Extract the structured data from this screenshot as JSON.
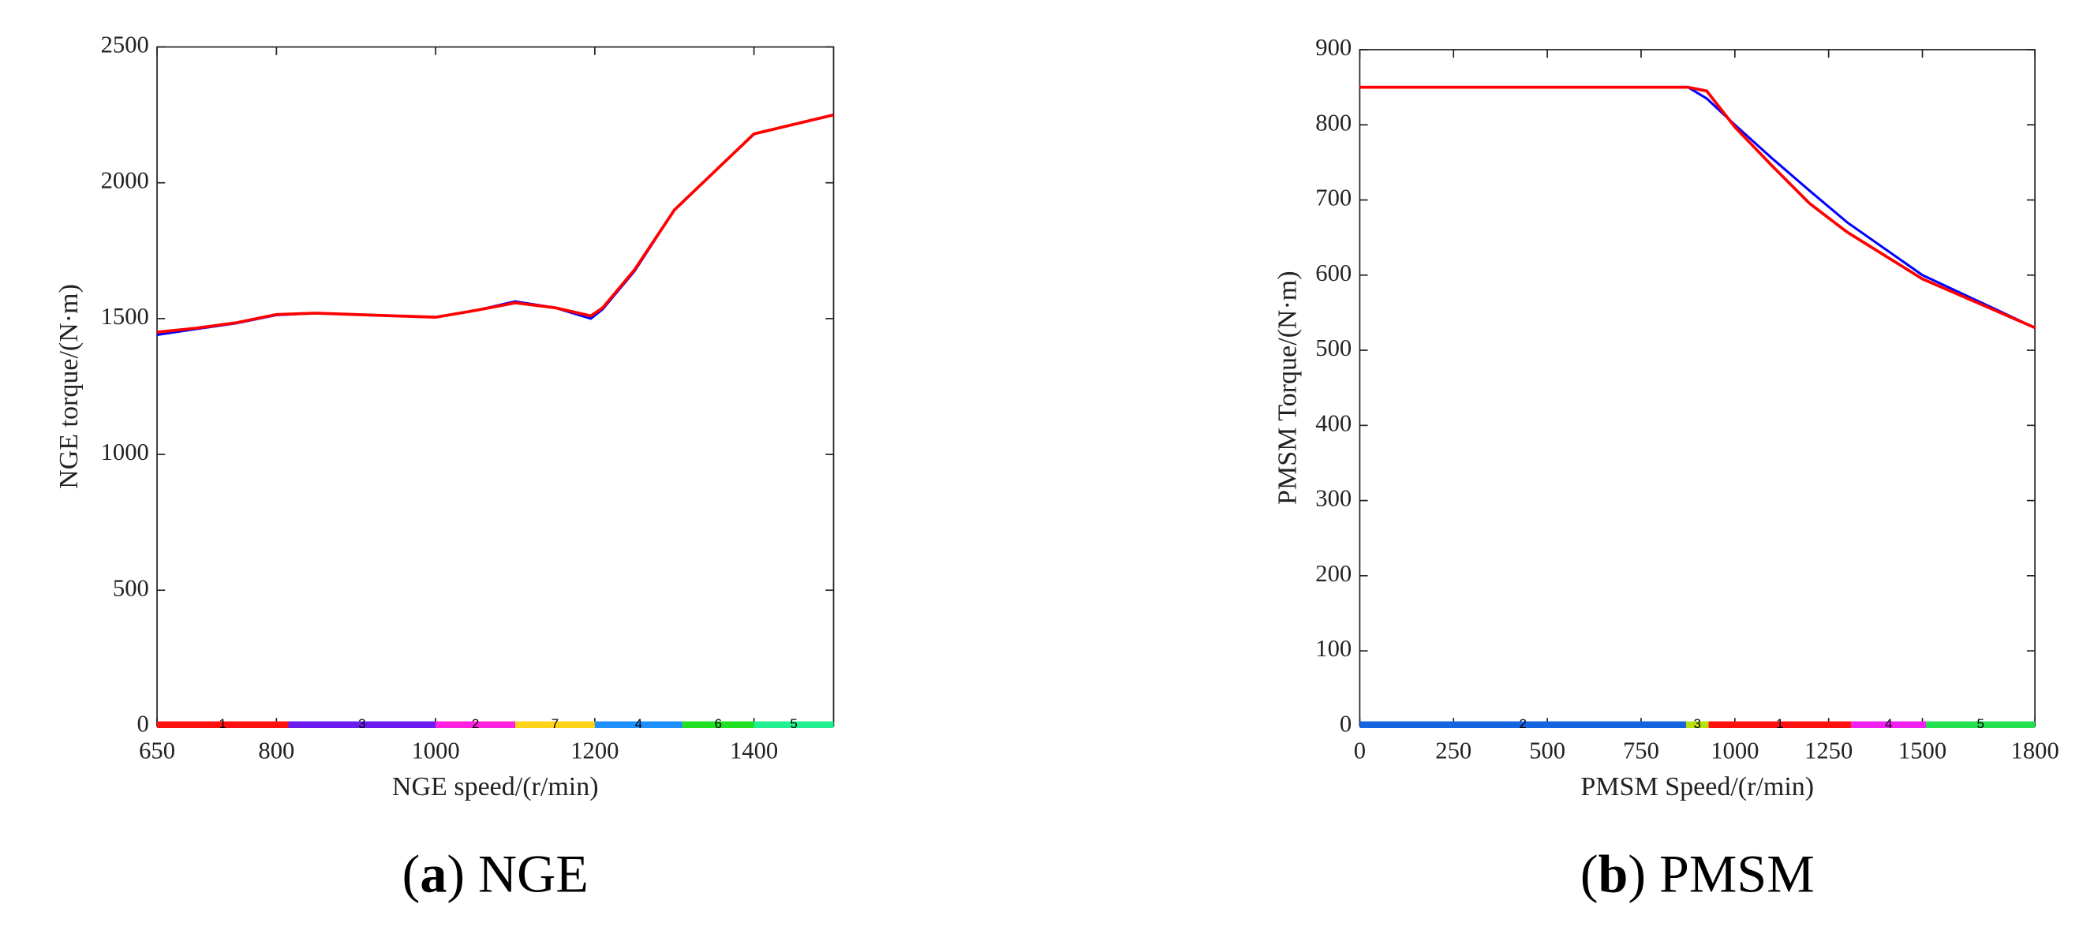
{
  "chart_data": [
    {
      "type": "line",
      "xlabel": "NGE speed/(r/min)",
      "ylabel": "NGE torque/(N·m)",
      "caption": {
        "open": "(",
        "label": "a",
        "rest": ") NGE"
      },
      "xlim": [
        650,
        1500
      ],
      "xticks": [
        650,
        800,
        1000,
        1200,
        1400
      ],
      "ylim": [
        0,
        2500
      ],
      "yticks": [
        0,
        500,
        1000,
        1500,
        2000,
        2500
      ],
      "x": [
        650,
        700,
        750,
        800,
        850,
        900,
        950,
        1000,
        1050,
        1100,
        1150,
        1195,
        1210,
        1250,
        1300,
        1350,
        1400,
        1450,
        1500
      ],
      "series": [
        {
          "color": "#0000ff",
          "values": [
            1440,
            1462,
            1483,
            1513,
            1520,
            1515,
            1510,
            1505,
            1530,
            1563,
            1540,
            1500,
            1535,
            1675,
            1900,
            2040,
            2180,
            2215,
            2250
          ]
        },
        {
          "color": "#ff0000",
          "values": [
            1450,
            1465,
            1485,
            1515,
            1520,
            1515,
            1510,
            1505,
            1530,
            1558,
            1540,
            1510,
            1540,
            1680,
            1900,
            2040,
            2180,
            2215,
            2250
          ]
        }
      ],
      "segments": [
        {
          "start": 650,
          "end": 815,
          "label": "1",
          "color": "#ff1010"
        },
        {
          "start": 815,
          "end": 1000,
          "label": "3",
          "color": "#6a1cf0"
        },
        {
          "start": 1000,
          "end": 1100,
          "label": "2",
          "color": "#ff20e0"
        },
        {
          "start": 1100,
          "end": 1200,
          "label": "7",
          "color": "#ffd21a"
        },
        {
          "start": 1200,
          "end": 1310,
          "label": "4",
          "color": "#1e90ff"
        },
        {
          "start": 1310,
          "end": 1400,
          "label": "6",
          "color": "#22e022"
        },
        {
          "start": 1400,
          "end": 1500,
          "label": "5",
          "color": "#20f090"
        }
      ]
    },
    {
      "type": "line",
      "xlabel": "PMSM Speed/(r/min)",
      "ylabel": "PMSM Torque/(N·m)",
      "caption": {
        "open": "(",
        "label": "b",
        "rest": ") PMSM"
      },
      "xlim": [
        0,
        1800
      ],
      "xticks": [
        0,
        250,
        500,
        750,
        1000,
        1250,
        1500,
        1800
      ],
      "ylim": [
        0,
        900
      ],
      "yticks": [
        0,
        100,
        200,
        300,
        400,
        500,
        600,
        700,
        800,
        900
      ],
      "x": [
        0,
        250,
        500,
        750,
        875,
        925,
        1000,
        1100,
        1200,
        1300,
        1500,
        1800
      ],
      "series": [
        {
          "color": "#0000ff",
          "values": [
            850,
            850,
            850,
            850,
            850,
            835,
            800,
            755,
            712,
            670,
            600,
            530
          ]
        },
        {
          "color": "#ff0000",
          "values": [
            850,
            850,
            850,
            850,
            850,
            845,
            797,
            745,
            695,
            657,
            595,
            530
          ]
        }
      ],
      "segments": [
        {
          "start": 0,
          "end": 870,
          "label": "2",
          "color": "#1565e0"
        },
        {
          "start": 870,
          "end": 930,
          "label": "3",
          "color": "#b8e010"
        },
        {
          "start": 930,
          "end": 1310,
          "label": "1",
          "color": "#ff1010"
        },
        {
          "start": 1310,
          "end": 1510,
          "label": "4",
          "color": "#f020f0"
        },
        {
          "start": 1510,
          "end": 1800,
          "label": "5",
          "color": "#22e050"
        }
      ]
    }
  ]
}
